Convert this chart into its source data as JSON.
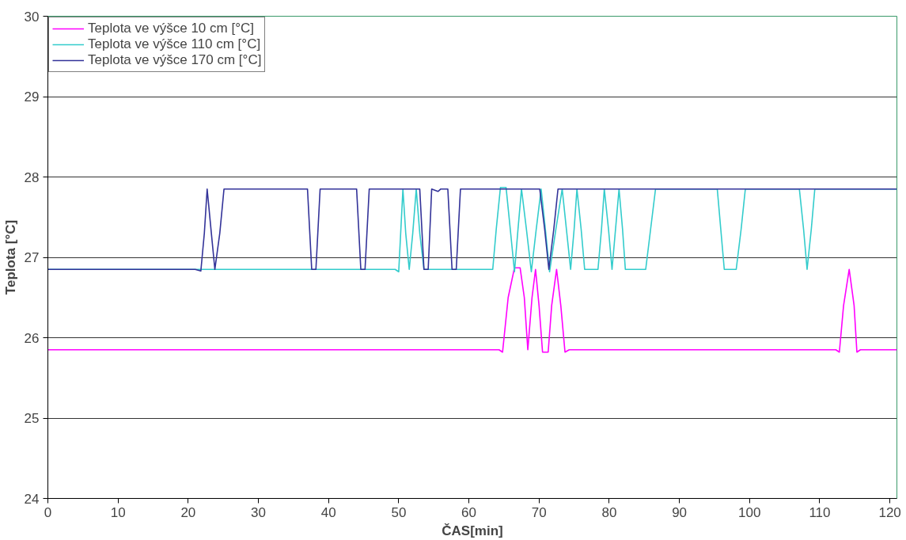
{
  "chart_data": {
    "type": "line",
    "xlabel": "ČAS[min]",
    "ylabel": "Teplota [°C]",
    "xlim": [
      0,
      121
    ],
    "xticks": [
      0,
      10,
      20,
      30,
      40,
      50,
      60,
      70,
      80,
      90,
      100,
      110,
      120
    ],
    "ylim": [
      24,
      30
    ],
    "yticks": [
      24,
      25,
      26,
      27,
      28,
      29,
      30
    ],
    "grid": "y",
    "legend": "top left",
    "marker": "none",
    "line_style": "solid",
    "series": [
      {
        "name": "Teplota ve výšce 10 cm [°C]",
        "color": "#ff00ff",
        "x": [
          0,
          64.3,
          64.8,
          65.6,
          66.5,
          67.3,
          67.9,
          68.4,
          69.0,
          69.5,
          70.0,
          70.5,
          71.3,
          71.8,
          72.5,
          73.1,
          73.7,
          74.3,
          112.3,
          112.8,
          113.4,
          114.2,
          114.9,
          115.3,
          115.8,
          121
        ],
        "values": [
          25.85,
          25.85,
          25.82,
          26.5,
          26.87,
          26.87,
          26.5,
          25.85,
          26.5,
          26.85,
          26.4,
          25.82,
          25.82,
          26.4,
          26.85,
          26.4,
          25.82,
          25.85,
          25.85,
          25.82,
          26.4,
          26.85,
          26.4,
          25.82,
          25.85,
          25.85
        ]
      },
      {
        "name": "Teplota ve výšce 110 cm [°C]",
        "color": "#33cccc",
        "x": [
          0,
          49.5,
          50.0,
          50.6,
          51.0,
          51.5,
          52.0,
          52.5,
          53.0,
          53.6,
          63.4,
          63.9,
          64.5,
          65.3,
          65.9,
          66.5,
          67.0,
          67.5,
          68.2,
          68.9,
          69.6,
          70.3,
          70.9,
          71.5,
          72.4,
          73.3,
          73.9,
          74.5,
          75.0,
          75.4,
          76.0,
          76.5,
          78.4,
          78.9,
          79.3,
          79.9,
          80.4,
          80.9,
          81.4,
          81.9,
          82.3,
          85.2,
          85.9,
          86.6,
          95.4,
          95.9,
          96.4,
          98.1,
          98.8,
          99.4,
          107.1,
          107.7,
          108.2,
          108.8,
          109.3,
          121
        ],
        "values": [
          26.85,
          26.85,
          26.82,
          27.85,
          27.3,
          26.85,
          27.3,
          27.85,
          27.3,
          26.85,
          26.85,
          27.35,
          27.87,
          27.87,
          27.35,
          26.82,
          27.35,
          27.85,
          27.35,
          26.82,
          27.35,
          27.85,
          27.35,
          26.82,
          27.35,
          27.85,
          27.35,
          26.85,
          27.35,
          27.85,
          27.35,
          26.85,
          26.85,
          27.35,
          27.85,
          27.35,
          26.85,
          27.35,
          27.85,
          27.35,
          26.85,
          26.85,
          27.35,
          27.85,
          27.85,
          27.35,
          26.85,
          26.85,
          27.35,
          27.85,
          27.85,
          27.35,
          26.85,
          27.35,
          27.85,
          27.85
        ]
      },
      {
        "name": "Teplota ve výšce 170 cm [°C]",
        "color": "#333399",
        "x": [
          0,
          21.0,
          21.8,
          22.3,
          22.7,
          23.3,
          23.8,
          24.5,
          25.1,
          37.0,
          37.6,
          38.2,
          38.8,
          44.0,
          44.6,
          45.2,
          45.8,
          53.0,
          53.6,
          54.2,
          54.7,
          55.6,
          56.0,
          57.0,
          57.6,
          58.2,
          58.8,
          70.1,
          70.8,
          71.4,
          72.1,
          72.7,
          121
        ],
        "values": [
          26.85,
          26.85,
          26.83,
          27.3,
          27.85,
          27.3,
          26.85,
          27.3,
          27.85,
          27.85,
          26.85,
          26.85,
          27.85,
          27.85,
          26.85,
          26.85,
          27.85,
          27.85,
          26.85,
          26.85,
          27.85,
          27.82,
          27.85,
          27.85,
          26.85,
          26.85,
          27.85,
          27.85,
          27.35,
          26.85,
          27.35,
          27.85,
          27.85
        ]
      }
    ]
  }
}
